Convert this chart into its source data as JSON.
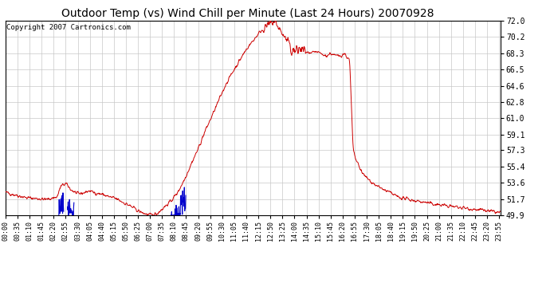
{
  "title": "Outdoor Temp (vs) Wind Chill per Minute (Last 24 Hours) 20070928",
  "copyright_text": "Copyright 2007 Cartronics.com",
  "y_ticks": [
    49.9,
    51.7,
    53.6,
    55.4,
    57.3,
    59.1,
    61.0,
    62.8,
    64.6,
    66.5,
    68.3,
    70.2,
    72.0
  ],
  "ylim": [
    49.9,
    72.0
  ],
  "red_color": "#cc0000",
  "blue_color": "#0000cc",
  "bg_color": "#ffffff",
  "grid_color": "#c8c8c8",
  "title_fontsize": 10,
  "copyright_fontsize": 6.5,
  "tick_label_fontsize": 6,
  "y_tick_fontsize": 7
}
